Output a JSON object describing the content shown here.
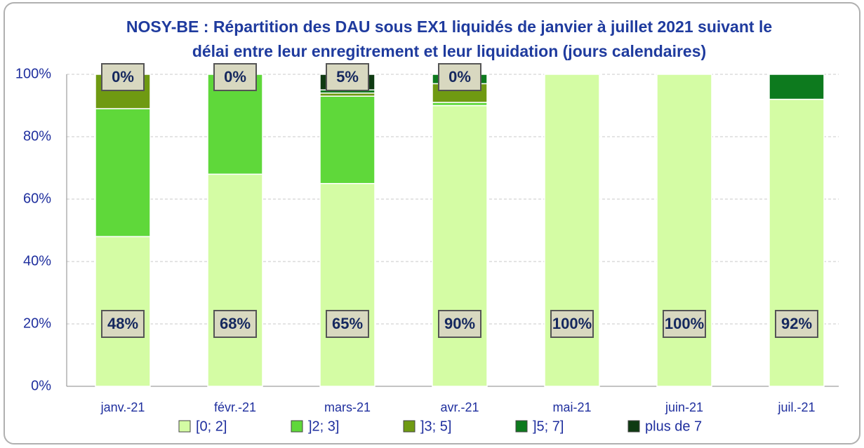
{
  "chart_data": {
    "type": "stacked_bar",
    "title": [
      "NOSY-BE : Répartition des DAU sous EX1 liquidés de janvier à juillet 2021 suivant le",
      "délai entre leur enregitrement et leur liquidation (jours calendaires)"
    ],
    "categories": [
      "janv.-21",
      "févr.-21",
      "mars-21",
      "avr.-21",
      "mai-21",
      "juin-21",
      "juil.-21"
    ],
    "series": [
      {
        "name": "[0; 2]",
        "color": "#d4fca4",
        "values": [
          48,
          68,
          65,
          90,
          100,
          100,
          92
        ],
        "value_labels": [
          "48%",
          "68%",
          "65%",
          "90%",
          "100%",
          "100%",
          "92%"
        ]
      },
      {
        "name": "]2; 3]",
        "color": "#5fd83a",
        "values": [
          41,
          32,
          28,
          1,
          0,
          0,
          0
        ]
      },
      {
        "name": "]3; 5]",
        "color": "#6f9a12",
        "values": [
          11,
          0,
          1,
          6,
          0,
          0,
          0
        ]
      },
      {
        "name": "]5; 7]",
        "color": "#0d7a1e",
        "values": [
          0,
          0,
          1,
          3,
          0,
          0,
          8
        ]
      },
      {
        "name": "plus de 7",
        "color": "#0f3a12",
        "values": [
          0,
          0,
          5,
          0,
          0,
          0,
          0
        ],
        "value_labels": [
          "0%",
          "0%",
          "5%",
          "0%",
          null,
          null,
          null
        ]
      }
    ],
    "ylim": [
      0,
      100
    ],
    "yticks": [
      {
        "value": 0,
        "label": "0%"
      },
      {
        "value": 20,
        "label": "20%"
      },
      {
        "value": 40,
        "label": "40%"
      },
      {
        "value": 60,
        "label": "60%"
      },
      {
        "value": 80,
        "label": "80%"
      },
      {
        "value": 100,
        "label": "100%"
      }
    ],
    "grid": true,
    "legend": "bottom"
  }
}
